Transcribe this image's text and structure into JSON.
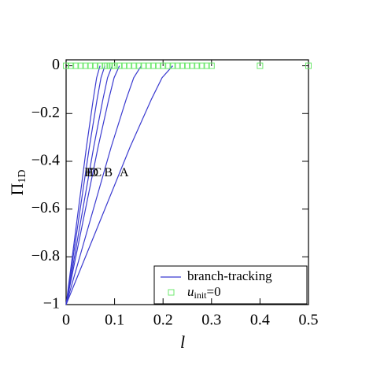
{
  "chart_data": {
    "type": "line",
    "xlabel": "l",
    "ylabel": "Π",
    "ylabel_sub": "1D",
    "xlim": [
      0,
      0.5
    ],
    "ylim": [
      -1,
      0.025
    ],
    "xticks": [
      0,
      0.1,
      0.2,
      0.3,
      0.4,
      0.5
    ],
    "yticks": [
      {
        "value": -1,
        "label": "−1"
      },
      {
        "value": -0.8,
        "label": "−0.8"
      },
      {
        "value": -0.6,
        "label": "−0.6"
      },
      {
        "value": -0.4,
        "label": "−0.4"
      },
      {
        "value": -0.2,
        "label": "−0.2"
      },
      0
    ],
    "line_color": "#3b3bd0",
    "marker_color": "#6fe86f",
    "series": [
      {
        "name": "A",
        "x": [
          0,
          0.044,
          0.088,
          0.132,
          0.176,
          0.198,
          0.22
        ],
        "values": [
          -1,
          -0.78,
          -0.56,
          -0.34,
          -0.14,
          -0.05,
          0
        ]
      },
      {
        "name": "B",
        "x": [
          0,
          0.031,
          0.062,
          0.093,
          0.124,
          0.1395,
          0.155
        ],
        "values": [
          -1,
          -0.78,
          -0.56,
          -0.34,
          -0.14,
          -0.05,
          0
        ]
      },
      {
        "name": "C",
        "x": [
          0,
          0.022,
          0.044,
          0.066,
          0.088,
          0.099,
          0.11
        ],
        "values": [
          -1,
          -0.78,
          -0.56,
          -0.34,
          -0.14,
          -0.05,
          0
        ]
      },
      {
        "name": "D",
        "x": [
          0,
          0.019,
          0.038,
          0.057,
          0.076,
          0.0855,
          0.095
        ],
        "values": [
          -1,
          -0.78,
          -0.56,
          -0.34,
          -0.14,
          -0.05,
          0
        ]
      },
      {
        "name": "E",
        "x": [
          0,
          0.016,
          0.032,
          0.048,
          0.064,
          0.072,
          0.08
        ],
        "values": [
          -1,
          -0.78,
          -0.56,
          -0.34,
          -0.14,
          -0.05,
          0
        ]
      },
      {
        "name": "F",
        "x": [
          0,
          0.014,
          0.028,
          0.042,
          0.056,
          0.063,
          0.07
        ],
        "values": [
          -1,
          -0.78,
          -0.56,
          -0.34,
          -0.14,
          -0.05,
          0
        ]
      }
    ],
    "markers": {
      "x": [
        0,
        0.01,
        0.02,
        0.03,
        0.04,
        0.05,
        0.06,
        0.07,
        0.08,
        0.085,
        0.09,
        0.095,
        0.1,
        0.11,
        0.12,
        0.13,
        0.14,
        0.15,
        0.16,
        0.17,
        0.18,
        0.19,
        0.2,
        0.21,
        0.22,
        0.23,
        0.24,
        0.25,
        0.26,
        0.27,
        0.28,
        0.29,
        0.3,
        0.4,
        0.5
      ],
      "values": [
        0,
        0,
        0,
        0,
        0,
        0,
        0,
        0,
        0,
        0,
        0,
        0,
        0,
        0,
        0,
        0,
        0,
        0,
        0,
        0,
        0,
        0,
        0,
        0,
        0,
        0,
        0,
        0,
        0,
        0,
        0,
        0,
        0,
        0,
        0
      ]
    },
    "legend": [
      {
        "label": "branch-tracking"
      },
      {
        "label": "u",
        "sub": "init",
        "suffix": "=0"
      }
    ]
  }
}
